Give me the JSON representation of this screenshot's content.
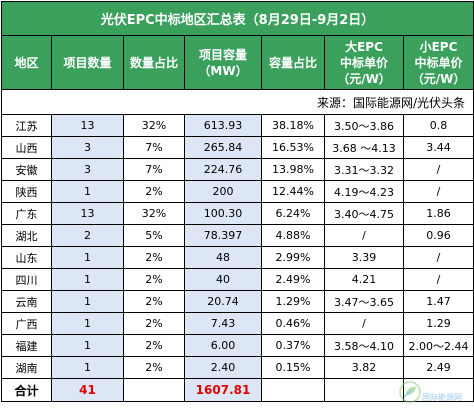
{
  "title": "光伏EPC中标地区汇总表（8月29日-9月2日）",
  "headers": {
    "region": "地区",
    "count": "项目数量",
    "count_ratio": "数量占比",
    "capacity": "项目容量\n（MW）",
    "capacity_ratio": "容量占比",
    "big_price": "大EPC\n中标单价\n（元/W）",
    "small_price": "小EPC\n中标单价\n（元/W）"
  },
  "source": "来源：国际能源网/光伏头条",
  "rows": [
    {
      "region": "江苏",
      "count": "13",
      "count_ratio": "32%",
      "capacity": "613.93",
      "capacity_ratio": "38.18%",
      "big_price": "3.50～3.86",
      "small_price": "0.8"
    },
    {
      "region": "山西",
      "count": "3",
      "count_ratio": "7%",
      "capacity": "265.84",
      "capacity_ratio": "16.53%",
      "big_price": "3.68 ～4.13",
      "small_price": "3.44"
    },
    {
      "region": "安徽",
      "count": "3",
      "count_ratio": "7%",
      "capacity": "224.76",
      "capacity_ratio": "13.98%",
      "big_price": "3.31～3.32",
      "small_price": "/"
    },
    {
      "region": "陕西",
      "count": "1",
      "count_ratio": "2%",
      "capacity": "200",
      "capacity_ratio": "12.44%",
      "big_price": "4.19～4.23",
      "small_price": "/"
    },
    {
      "region": "广东",
      "count": "13",
      "count_ratio": "32%",
      "capacity": "100.30",
      "capacity_ratio": "6.24%",
      "big_price": "3.40～4.75",
      "small_price": "1.86"
    },
    {
      "region": "湖北",
      "count": "2",
      "count_ratio": "5%",
      "capacity": "78.397",
      "capacity_ratio": "4.88%",
      "big_price": "/",
      "small_price": "0.96"
    },
    {
      "region": "山东",
      "count": "1",
      "count_ratio": "2%",
      "capacity": "48",
      "capacity_ratio": "2.99%",
      "big_price": "3.39",
      "small_price": "/"
    },
    {
      "region": "四川",
      "count": "1",
      "count_ratio": "2%",
      "capacity": "40",
      "capacity_ratio": "2.49%",
      "big_price": "4.21",
      "small_price": "/"
    },
    {
      "region": "云南",
      "count": "1",
      "count_ratio": "2%",
      "capacity": "20.74",
      "capacity_ratio": "1.29%",
      "big_price": "3.47～3.65",
      "small_price": "1.47"
    },
    {
      "region": "广西",
      "count": "1",
      "count_ratio": "2%",
      "capacity": "7.43",
      "capacity_ratio": "0.46%",
      "big_price": "/",
      "small_price": "1.29"
    },
    {
      "region": "福建",
      "count": "1",
      "count_ratio": "2%",
      "capacity": "6.00",
      "capacity_ratio": "0.37%",
      "big_price": "3.58～4.10",
      "small_price": "2.00～2.44"
    },
    {
      "region": "湖南",
      "count": "1",
      "count_ratio": "2%",
      "capacity": "2.40",
      "capacity_ratio": "0.15%",
      "big_price": "3.82",
      "small_price": "2.49"
    }
  ],
  "total": {
    "label": "合计",
    "count": "41",
    "capacity": "1607.81"
  },
  "watermark": {
    "text": "国际能源网",
    "icon": "leaf-logo-icon"
  },
  "colors": {
    "header_bg": "#3aa05c",
    "highlight_bg": "#dde6f5",
    "total_red": "#e00000"
  }
}
